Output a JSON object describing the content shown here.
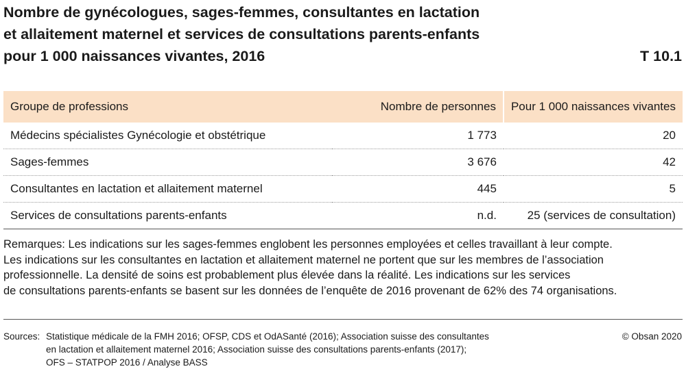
{
  "title": {
    "line1": "Nombre de gynécologues, sages-femmes, consultantes en lactation",
    "line2": "et allaitement maternel et services de consultations parents-enfants",
    "line3": "pour 1 000 naissances vivantes, 2016",
    "code": "T 10.1"
  },
  "table": {
    "headers": [
      "Groupe de professions",
      "Nombre de personnes",
      "Pour 1 000 naissances vivantes"
    ],
    "rows": [
      [
        "Médecins spécialistes Gynécologie et obstétrique",
        "1 773",
        "20"
      ],
      [
        "Sages-femmes",
        "3 676",
        "42"
      ],
      [
        "Consultantes en lactation et allaitement maternel",
        "445",
        "5"
      ],
      [
        "Services de consultations parents-enfants",
        "n.d.",
        "25 (services de consultation)"
      ]
    ]
  },
  "remarks": {
    "line1": "Remarques: Les indications sur les sages-femmes englobent les personnes employées et celles travaillant à leur compte.",
    "line2": "Les indications sur les consultantes en lactation et allaitement maternel ne portent que sur les membres de l’association",
    "line3": "professionnelle. La densité de soins est probablement plus élevée dans la réalité. Les indications sur les services",
    "line4": "de consultations parents-enfants se basent sur les données de l’enquête de 2016 provenant de 62% des 74 organisations."
  },
  "sources": {
    "label": "Sources:",
    "line1": "Statistique médicale de la FMH 2016; OFSP, CDS et OdASanté (2016); Association suisse des consultantes",
    "line2": "en lactation et allaitement maternel 2016; Association suisse des consultations parents-enfants (2017);",
    "line3": "OFS – STATPOP 2016 / Analyse BASS"
  },
  "copyright": "© Obsan 2020",
  "colors": {
    "header_background": "#fbe0c6",
    "text": "#1a1a1a"
  }
}
